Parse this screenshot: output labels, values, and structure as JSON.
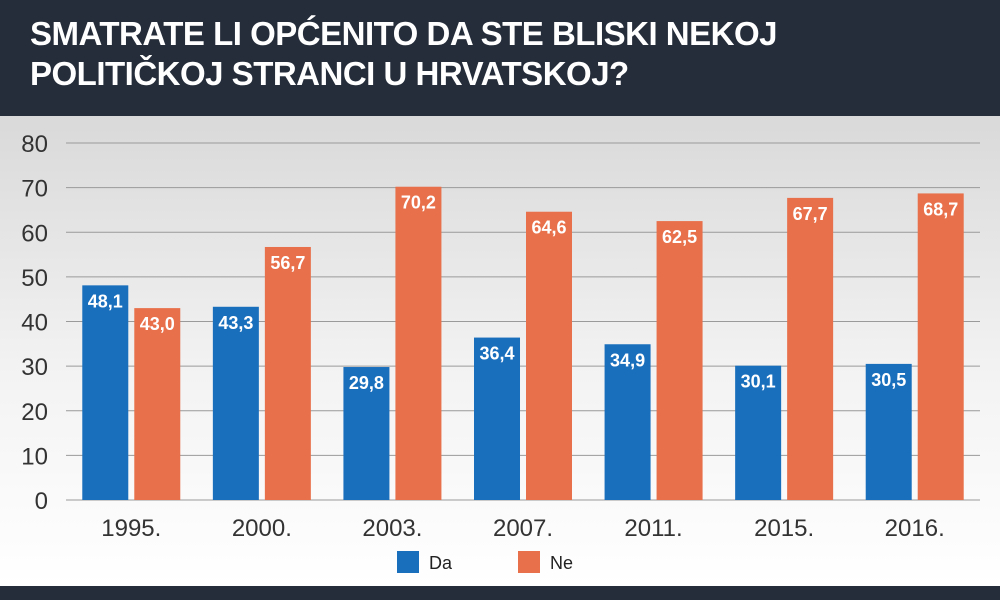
{
  "colors": {
    "header_bg": "#252d3a",
    "title_text": "#ffffff",
    "series_da": "#1a6fbd",
    "series_ne": "#e8704a",
    "gridline": "#9a9a9a"
  },
  "chart_data": {
    "type": "bar",
    "title": "SMATRATE LI OPĆENITO DA STE BLISKI NEKOJ POLITIČKOJ STRANCI U HRVATSKOJ?",
    "xlabel": "",
    "ylabel": "",
    "ylim": [
      0,
      80
    ],
    "yticks": [
      "0",
      "10",
      "20",
      "30",
      "40",
      "50",
      "60",
      "70",
      "80"
    ],
    "categories": [
      "1995.",
      "2000.",
      "2003.",
      "2007.",
      "2011.",
      "2015.",
      "2016."
    ],
    "series": [
      {
        "name": "Da",
        "color": "#1a6fbd",
        "values": [
          48.1,
          43.3,
          29.8,
          36.4,
          34.9,
          30.1,
          30.5
        ],
        "labels": [
          "48,1",
          "43,3",
          "29,8",
          "36,4",
          "34,9",
          "30,1",
          "30,5"
        ]
      },
      {
        "name": "Ne",
        "color": "#e8704a",
        "values": [
          43.0,
          56.7,
          70.2,
          64.6,
          62.5,
          67.7,
          68.7
        ],
        "labels": [
          "43,0",
          "56,7",
          "70,2",
          "64,6",
          "62,5",
          "67,7",
          "68,7"
        ]
      }
    ],
    "grid": true,
    "legend_position": "bottom-center"
  }
}
